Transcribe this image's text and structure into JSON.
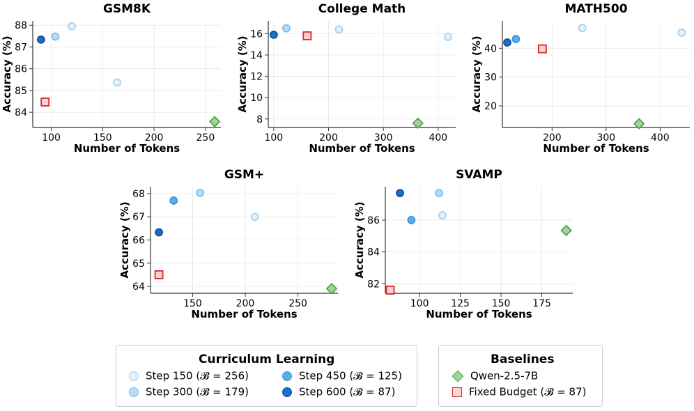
{
  "chart_data": [
    {
      "type": "scatter",
      "title": "GSM8K",
      "xlabel": "Number of Tokens",
      "ylabel": "Accuracy (%)",
      "xlim": [
        82,
        265
      ],
      "ylim": [
        83.3,
        88.2
      ],
      "xticks": [
        100,
        150,
        200,
        250
      ],
      "yticks": [
        84,
        85,
        86,
        87,
        88
      ],
      "points": [
        {
          "series": "step150",
          "x": 164,
          "y": 85.37
        },
        {
          "series": "step150",
          "x": 120,
          "y": 87.95
        },
        {
          "series": "step300",
          "x": 104,
          "y": 87.48
        },
        {
          "series": "step600",
          "x": 90,
          "y": 87.34
        },
        {
          "series": "fixed",
          "x": 94,
          "y": 84.47
        },
        {
          "series": "qwen",
          "x": 259,
          "y": 83.57
        }
      ]
    },
    {
      "type": "scatter",
      "title": "College Math",
      "xlabel": "Number of Tokens",
      "ylabel": "Accuracy (%)",
      "xlim": [
        90,
        432
      ],
      "ylim": [
        7.2,
        17.2
      ],
      "xticks": [
        100,
        200,
        300,
        400
      ],
      "yticks": [
        8,
        10,
        12,
        14,
        16
      ],
      "points": [
        {
          "series": "step150",
          "x": 219,
          "y": 16.4
        },
        {
          "series": "step150",
          "x": 418,
          "y": 15.7
        },
        {
          "series": "step300",
          "x": 123,
          "y": 16.5
        },
        {
          "series": "step600",
          "x": 100,
          "y": 15.9
        },
        {
          "series": "fixed",
          "x": 161,
          "y": 15.8
        },
        {
          "series": "qwen",
          "x": 363,
          "y": 7.6
        }
      ]
    },
    {
      "type": "scatter",
      "title": "MATH500",
      "xlabel": "Number of Tokens",
      "ylabel": "Accuracy (%)",
      "xlim": [
        108,
        455
      ],
      "ylim": [
        12.5,
        49.5
      ],
      "xticks": [
        200,
        300,
        400
      ],
      "yticks": [
        20,
        30,
        40
      ],
      "points": [
        {
          "series": "step150",
          "x": 256,
          "y": 47.0
        },
        {
          "series": "step150",
          "x": 440,
          "y": 45.4
        },
        {
          "series": "step450",
          "x": 133,
          "y": 43.2
        },
        {
          "series": "step600",
          "x": 117,
          "y": 42.0
        },
        {
          "series": "fixed",
          "x": 182,
          "y": 39.8
        },
        {
          "series": "qwen",
          "x": 361,
          "y": 13.8
        }
      ]
    },
    {
      "type": "scatter",
      "title": "GSM+",
      "xlabel": "Number of Tokens",
      "ylabel": "Accuracy (%)",
      "xlim": [
        110,
        288
      ],
      "ylim": [
        63.7,
        68.3
      ],
      "xticks": [
        150,
        200,
        250
      ],
      "yticks": [
        64,
        65,
        66,
        67,
        68
      ],
      "points": [
        {
          "series": "step150",
          "x": 209,
          "y": 67.0
        },
        {
          "series": "step300",
          "x": 157,
          "y": 68.03
        },
        {
          "series": "step450",
          "x": 132,
          "y": 67.7
        },
        {
          "series": "step600",
          "x": 118,
          "y": 66.33
        },
        {
          "series": "fixed",
          "x": 118,
          "y": 64.5
        },
        {
          "series": "qwen",
          "x": 282,
          "y": 63.9
        }
      ]
    },
    {
      "type": "scatter",
      "title": "SVAMP",
      "xlabel": "Number of Tokens",
      "ylabel": "Accuracy (%)",
      "xlim": [
        79,
        194
      ],
      "ylim": [
        81.4,
        88.1
      ],
      "xticks": [
        100,
        125,
        150,
        175
      ],
      "yticks": [
        82,
        84,
        86
      ],
      "points": [
        {
          "series": "step150",
          "x": 114,
          "y": 86.3
        },
        {
          "series": "step300",
          "x": 112,
          "y": 87.7
        },
        {
          "series": "step450",
          "x": 95,
          "y": 86.0
        },
        {
          "series": "step600",
          "x": 88,
          "y": 87.7
        },
        {
          "series": "fixed",
          "x": 82,
          "y": 81.6
        },
        {
          "series": "qwen",
          "x": 190,
          "y": 85.35
        }
      ]
    }
  ],
  "series_styles": {
    "step150": {
      "marker": "circle",
      "fill": "#e3f1fc",
      "stroke": "#a7d1f2"
    },
    "step300": {
      "marker": "circle",
      "fill": "#b8dcf6",
      "stroke": "#7dbcec"
    },
    "step450": {
      "marker": "circle",
      "fill": "#5aaee8",
      "stroke": "#3d95d6"
    },
    "step600": {
      "marker": "circle",
      "fill": "#1b6fc6",
      "stroke": "#0d4f98"
    },
    "fixed": {
      "marker": "square",
      "fill": "#fbd3d3",
      "stroke": "#d62728"
    },
    "qwen": {
      "marker": "diamond",
      "fill": "#9fd59a",
      "stroke": "#54a24b"
    }
  },
  "legends": {
    "curriculum": {
      "title": "Curriculum Learning",
      "items": [
        {
          "series": "step150",
          "label": "Step 150 (𝓑 = 256)"
        },
        {
          "series": "step450",
          "label": "Step 450 (𝓑 = 125)"
        },
        {
          "series": "step300",
          "label": "Step 300 (𝓑 = 179)"
        },
        {
          "series": "step600",
          "label": "Step 600 (𝓑 = 87)"
        }
      ]
    },
    "baselines": {
      "title": "Baselines",
      "items": [
        {
          "series": "qwen",
          "label": "Qwen-2.5-7B"
        },
        {
          "series": "fixed",
          "label": "Fixed Budget (𝓑 = 87)"
        }
      ]
    }
  }
}
